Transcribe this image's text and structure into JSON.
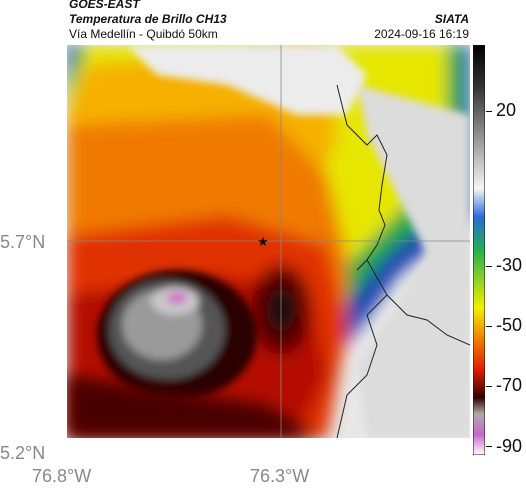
{
  "header": {
    "title_line1": "GOES-EAST",
    "title_line2": "Temperatura de Brillo CH13",
    "brand": "SIATA",
    "subtitle": "Vía Medellín - Quibdó 50km",
    "timestamp": "2024-09-16 16:19"
  },
  "axes": {
    "lat_labels": [
      "5.7°N",
      "5.2°N"
    ],
    "lon_labels": [
      "76.8°W",
      "76.3°W"
    ]
  },
  "colorbar": {
    "labels": [
      "20",
      "-30",
      "-50",
      "-70",
      "-90"
    ]
  },
  "map": {
    "marker": "star-marker"
  }
}
